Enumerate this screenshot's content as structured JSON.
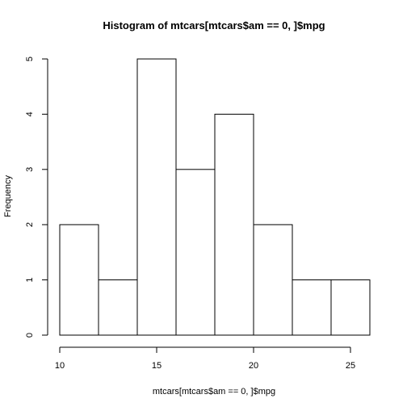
{
  "chart_data": {
    "type": "bar",
    "subtype": "histogram",
    "title": "Histogram of mtcars[mtcars$am == 0, ]$mpg",
    "xlabel": "mtcars[mtcars$am == 0, ]$mpg",
    "ylabel": "Frequency",
    "bin_edges": [
      10,
      12,
      14,
      16,
      18,
      20,
      22,
      24,
      26
    ],
    "values": [
      2,
      1,
      5,
      3,
      4,
      2,
      1,
      1
    ],
    "xlim": [
      10,
      26
    ],
    "ylim": [
      0,
      5
    ],
    "x_ticks": [
      10,
      15,
      20,
      25
    ],
    "y_ticks": [
      0,
      1,
      2,
      3,
      4,
      5
    ],
    "grid": false,
    "legend": "none"
  }
}
